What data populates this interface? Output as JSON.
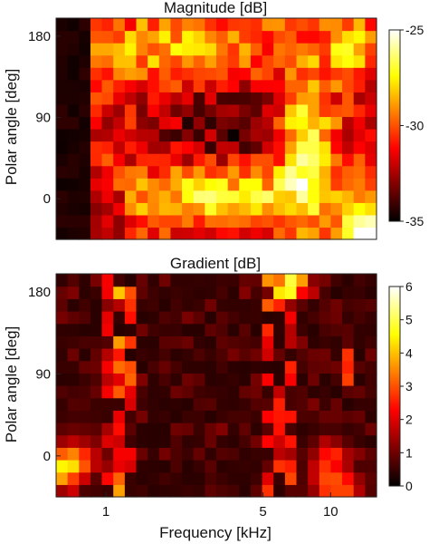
{
  "chart_data": [
    {
      "type": "heatmap",
      "title": "Magnitude [dB]",
      "ylabel": "Polar angle [deg]",
      "xlabel": "",
      "xscale": "log",
      "xlim_khz": [
        0.6,
        16
      ],
      "ylim_deg": [
        -45,
        200
      ],
      "x_ticks": [],
      "y_ticks": [
        {
          "value": 0,
          "label": "0"
        },
        {
          "value": 90,
          "label": "90"
        },
        {
          "value": 180,
          "label": "180"
        }
      ],
      "colormap": "hot",
      "colorbar": {
        "min": -35,
        "max": -25,
        "ticks": [
          {
            "value": -35,
            "label": "-35"
          },
          {
            "value": -30,
            "label": "-30"
          },
          {
            "value": -25,
            "label": "-25"
          }
        ]
      },
      "grid": false,
      "legend": "none",
      "n_cols": 28,
      "n_rows": 18,
      "seed": 7
    },
    {
      "type": "heatmap",
      "title": "Gradient [dB]",
      "ylabel": "Polar angle [deg]",
      "xlabel": "Frequency [kHz]",
      "xscale": "log",
      "xlim_khz": [
        0.6,
        16
      ],
      "ylim_deg": [
        -45,
        200
      ],
      "x_ticks": [
        {
          "value": 1,
          "label": "1"
        },
        {
          "value": 5,
          "label": "5"
        },
        {
          "value": 10,
          "label": "10"
        }
      ],
      "y_ticks": [
        {
          "value": 0,
          "label": "0"
        },
        {
          "value": 90,
          "label": "90"
        },
        {
          "value": 180,
          "label": "180"
        }
      ],
      "colormap": "hot",
      "colorbar": {
        "min": 0,
        "max": 6,
        "ticks": [
          {
            "value": 0,
            "label": "0"
          },
          {
            "value": 1,
            "label": "1"
          },
          {
            "value": 2,
            "label": "2"
          },
          {
            "value": 3,
            "label": "3"
          },
          {
            "value": 4,
            "label": "4"
          },
          {
            "value": 5,
            "label": "5"
          },
          {
            "value": 6,
            "label": "6"
          }
        ]
      },
      "grid": false,
      "legend": "none",
      "n_cols": 28,
      "n_rows": 18,
      "seed": 19
    }
  ]
}
